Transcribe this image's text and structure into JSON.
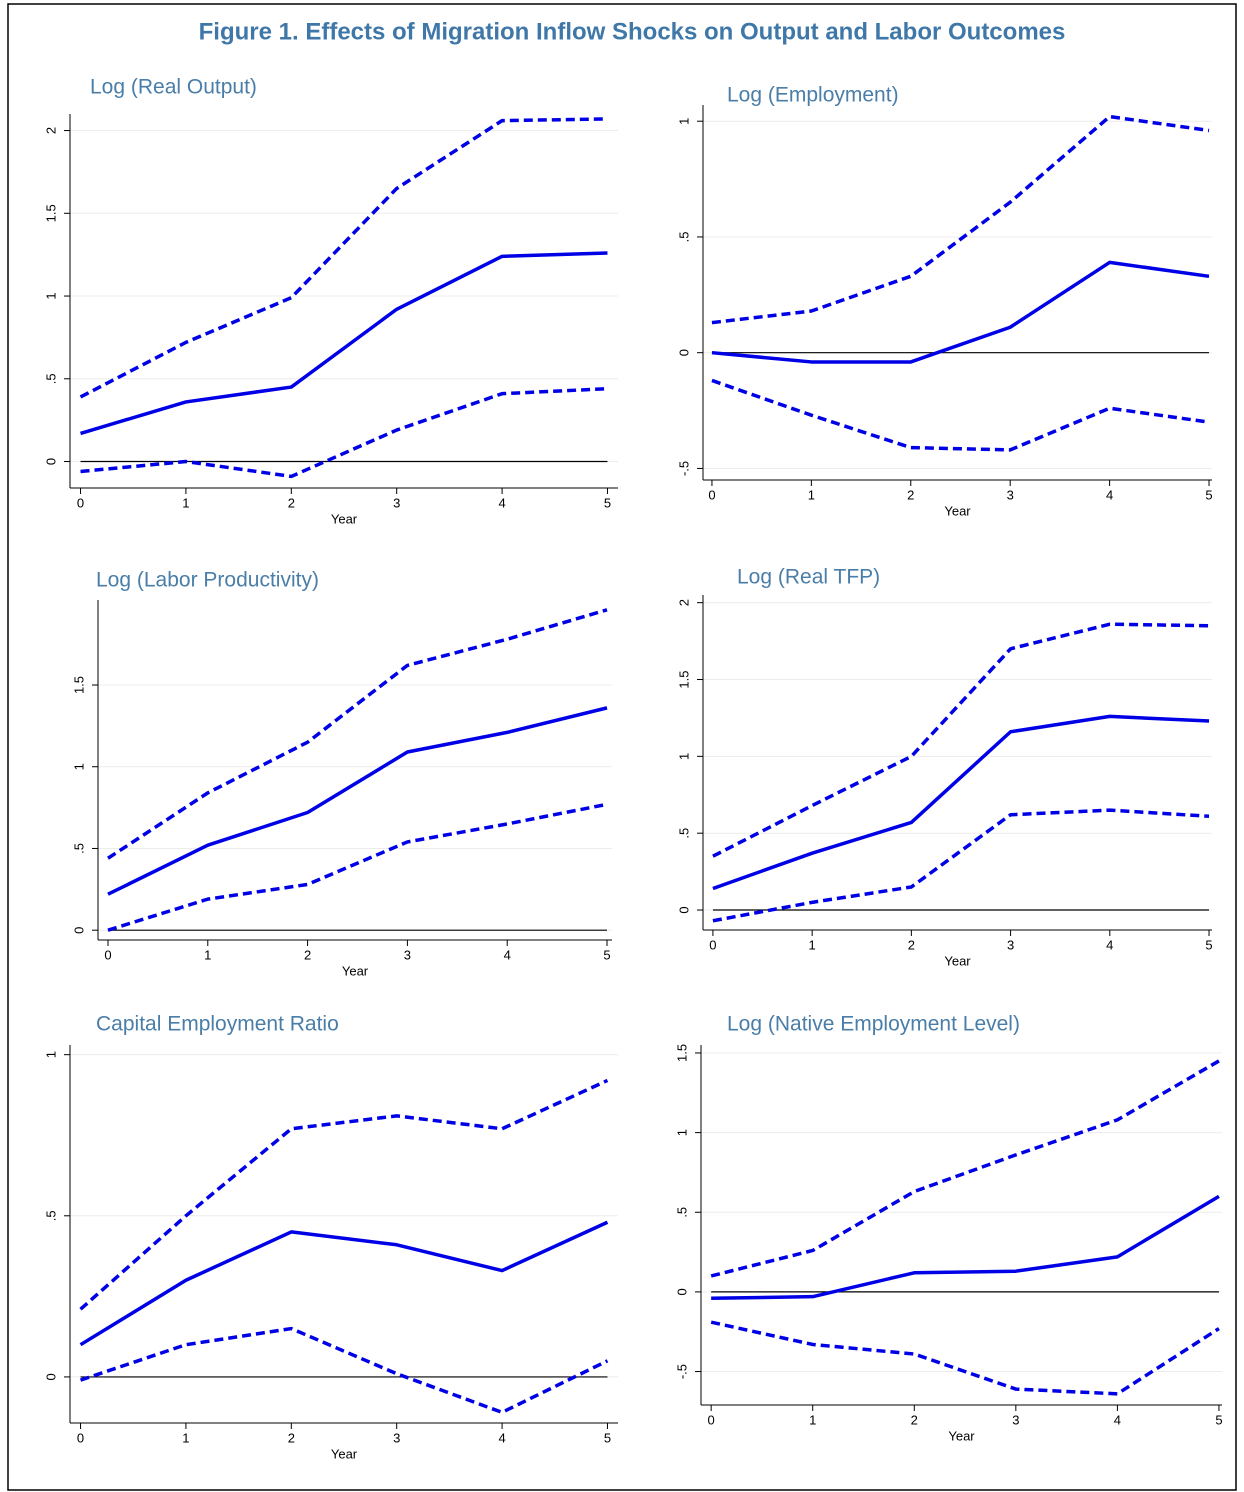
{
  "title": "Figure 1. Effects of Migration Inflow Shocks on Output and Labor Outcomes",
  "chart_data": [
    {
      "type": "line",
      "title": "Log (Real Output)",
      "xlabel": "Year",
      "x": [
        0,
        1,
        2,
        3,
        4,
        5
      ],
      "xlim": [
        -0.1,
        5.1
      ],
      "xticks": [
        0,
        1,
        2,
        3,
        4,
        5
      ],
      "ylim": [
        -0.16,
        2.1
      ],
      "yticks": [
        0,
        {
          "value": 0.5,
          "label": ".5"
        },
        1,
        1.5,
        2
      ],
      "grid": true,
      "reference_line": 0,
      "series": [
        {
          "color": "#0000e6",
          "style": "solid",
          "values": [
            0.17,
            0.36,
            0.45,
            0.92,
            1.24,
            1.26
          ]
        },
        {
          "color": "#0000e6",
          "style": "dashed",
          "values": [
            0.39,
            0.72,
            0.99,
            1.65,
            2.06,
            2.07
          ]
        },
        {
          "color": "#0000e6",
          "style": "dashed",
          "values": [
            -0.06,
            0.0,
            -0.09,
            0.19,
            0.41,
            0.44
          ]
        }
      ]
    },
    {
      "type": "line",
      "title": "Log (Employment)",
      "xlabel": "Year",
      "x": [
        0,
        1,
        2,
        3,
        4,
        5
      ],
      "xlim": [
        -0.09,
        5.03
      ],
      "xticks": [
        0,
        1,
        2,
        3,
        4,
        5
      ],
      "ylim": [
        -0.55,
        1.07
      ],
      "yticks": [
        {
          "value": -0.5,
          "label": "-.5"
        },
        0,
        {
          "value": 0.5,
          "label": ".5"
        },
        1
      ],
      "grid": true,
      "reference_line": 0,
      "series": [
        {
          "color": "#0000e6",
          "style": "solid",
          "values": [
            0.0,
            -0.04,
            -0.04,
            0.11,
            0.39,
            0.33
          ]
        },
        {
          "color": "#0000e6",
          "style": "dashed",
          "values": [
            0.13,
            0.18,
            0.33,
            0.65,
            1.02,
            0.96
          ]
        },
        {
          "color": "#0000e6",
          "style": "dashed",
          "values": [
            -0.12,
            -0.27,
            -0.41,
            -0.42,
            -0.24,
            -0.3
          ]
        }
      ]
    },
    {
      "type": "line",
      "title": "Log (Labor Productivity)",
      "xlabel": "Year",
      "x": [
        0,
        1,
        2,
        3,
        4,
        5
      ],
      "xlim": [
        -0.1,
        5.05
      ],
      "xticks": [
        0,
        1,
        2,
        3,
        4,
        5
      ],
      "ylim": [
        -0.06,
        2.02
      ],
      "yticks": [
        0,
        {
          "value": 0.5,
          "label": ".5"
        },
        1,
        1.5
      ],
      "grid": true,
      "reference_line": 0,
      "series": [
        {
          "color": "#0000e6",
          "style": "solid",
          "values": [
            0.22,
            0.52,
            0.72,
            1.09,
            1.21,
            1.36
          ]
        },
        {
          "color": "#0000e6",
          "style": "dashed",
          "values": [
            0.44,
            0.84,
            1.15,
            1.62,
            1.78,
            1.96
          ]
        },
        {
          "color": "#0000e6",
          "style": "dashed",
          "values": [
            0.0,
            0.19,
            0.28,
            0.54,
            0.65,
            0.77
          ]
        }
      ]
    },
    {
      "type": "line",
      "title": "Log (Real TFP)",
      "xlabel": "Year",
      "x": [
        0,
        1,
        2,
        3,
        4,
        5
      ],
      "xlim": [
        -0.1,
        5.03
      ],
      "xticks": [
        0,
        1,
        2,
        3,
        4,
        5
      ],
      "ylim": [
        -0.13,
        2.05
      ],
      "yticks": [
        0,
        {
          "value": 0.5,
          "label": ".5"
        },
        1,
        1.5,
        2
      ],
      "grid": true,
      "reference_line": 0,
      "series": [
        {
          "color": "#0000e6",
          "style": "solid",
          "values": [
            0.14,
            0.37,
            0.57,
            1.16,
            1.26,
            1.23
          ]
        },
        {
          "color": "#0000e6",
          "style": "dashed",
          "values": [
            0.35,
            0.68,
            1.0,
            1.7,
            1.86,
            1.85
          ]
        },
        {
          "color": "#0000e6",
          "style": "dashed",
          "values": [
            -0.07,
            0.05,
            0.15,
            0.62,
            0.65,
            0.61
          ]
        }
      ]
    },
    {
      "type": "line",
      "title": "Capital Employment Ratio",
      "xlabel": "Year",
      "x": [
        0,
        1,
        2,
        3,
        4,
        5
      ],
      "xlim": [
        -0.1,
        5.1
      ],
      "xticks": [
        0,
        1,
        2,
        3,
        4,
        5
      ],
      "ylim": [
        -0.143,
        1.03
      ],
      "yticks": [
        0,
        {
          "value": 0.5,
          "label": ".5"
        },
        1
      ],
      "grid": true,
      "reference_line": 0,
      "series": [
        {
          "color": "#0000e6",
          "style": "solid",
          "values": [
            0.1,
            0.3,
            0.45,
            0.41,
            0.33,
            0.48
          ]
        },
        {
          "color": "#0000e6",
          "style": "dashed",
          "values": [
            0.21,
            0.5,
            0.77,
            0.81,
            0.77,
            0.92
          ]
        },
        {
          "color": "#0000e6",
          "style": "dashed",
          "values": [
            -0.01,
            0.1,
            0.15,
            0.01,
            -0.11,
            0.05
          ]
        }
      ]
    },
    {
      "type": "line",
      "title": "Log (Native Employment Level)",
      "xlabel": "Year",
      "x": [
        0,
        1,
        2,
        3,
        4,
        5
      ],
      "xlim": [
        -0.1,
        5.03
      ],
      "xticks": [
        0,
        1,
        2,
        3,
        4,
        5
      ],
      "ylim": [
        -0.71,
        1.55
      ],
      "yticks": [
        {
          "value": -0.5,
          "label": "-.5"
        },
        0,
        {
          "value": 0.5,
          "label": ".5"
        },
        1,
        1.5
      ],
      "grid": true,
      "reference_line": 0,
      "series": [
        {
          "color": "#0000e6",
          "style": "solid",
          "values": [
            -0.04,
            -0.03,
            0.12,
            0.13,
            0.22,
            0.6
          ]
        },
        {
          "color": "#0000e6",
          "style": "dashed",
          "values": [
            0.1,
            0.26,
            0.63,
            0.86,
            1.08,
            1.45
          ]
        },
        {
          "color": "#0000e6",
          "style": "dashed",
          "values": [
            -0.19,
            -0.33,
            -0.39,
            -0.61,
            -0.64,
            -0.23
          ]
        }
      ]
    }
  ]
}
